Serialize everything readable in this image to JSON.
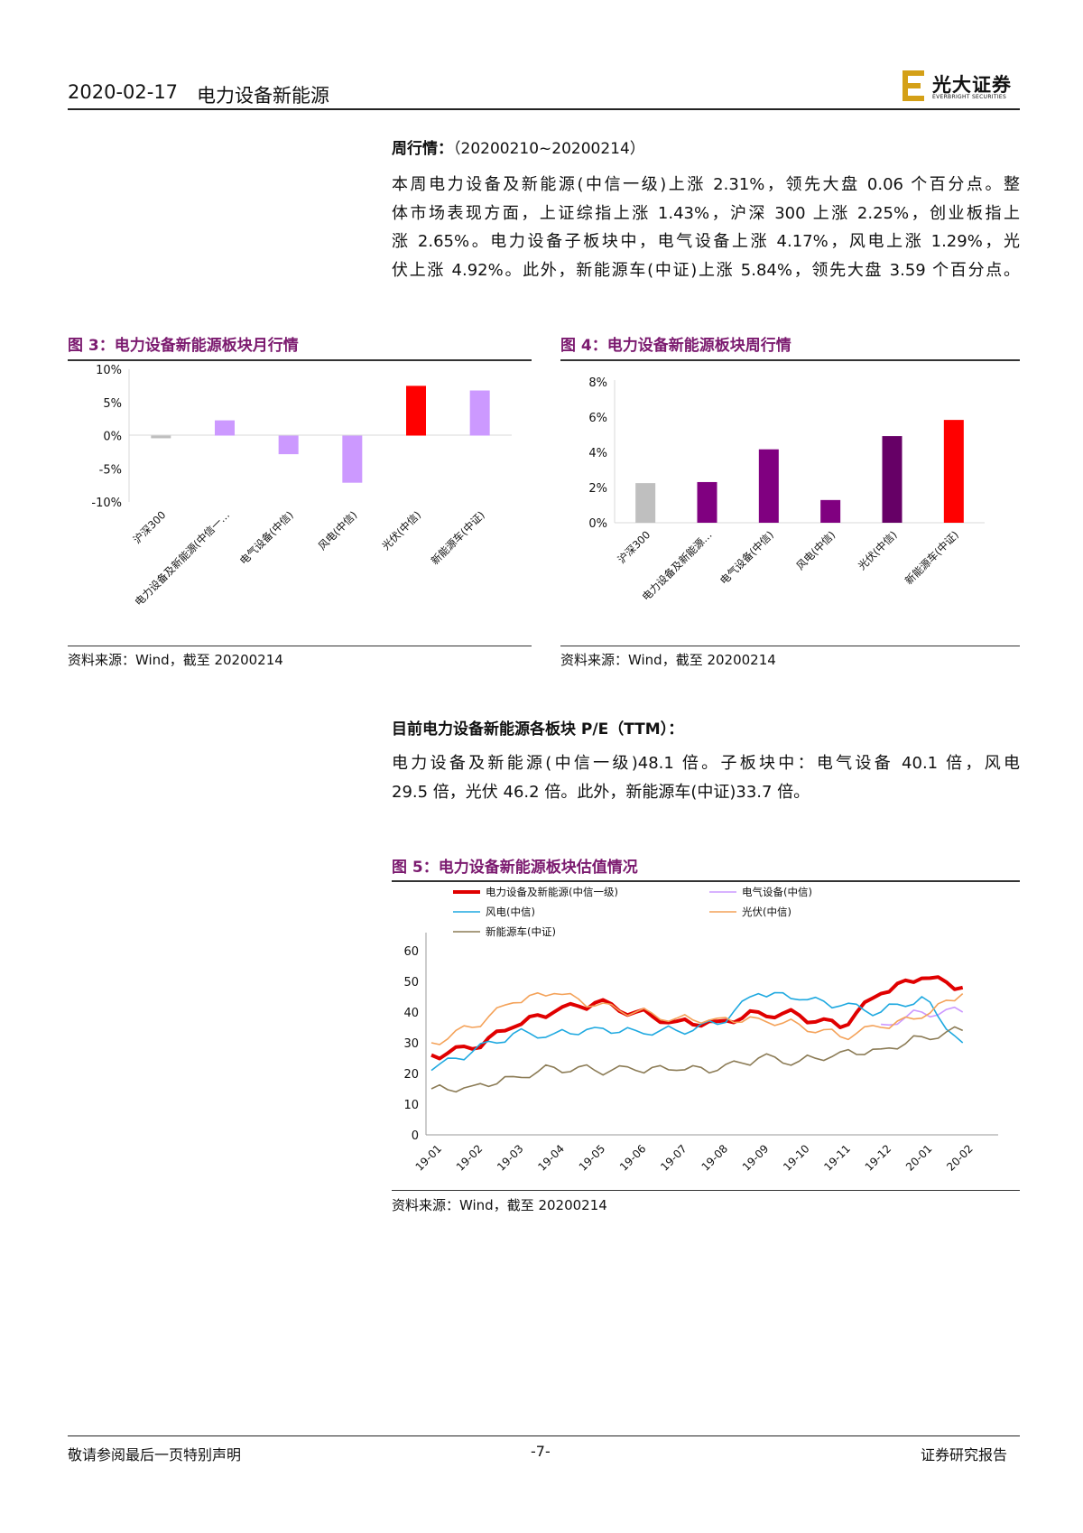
{
  "header": {
    "date": "2020-02-17",
    "topic": "电力设备新能源",
    "brand_name": "光大证券",
    "brand_sub": "EVERBRIGHT SECURITIES"
  },
  "weekly": {
    "title": "周行情：",
    "period": "（20200210~20200214）",
    "lines": [
      "本周电力设备及新能源(中信一级)上涨 2.31%，领先大盘 0.06 个百分点。整",
      "体市场表现方面，上证综指上涨 1.43%，沪深 300 上涨 2.25%，创业板指上",
      "涨 2.65%。电力设备子板块中，电气设备上涨 4.17%，风电上涨 1.29%，光",
      "伏上涨 4.92%。此外，新能源车(中证)上涨 5.84%，领先大盘 3.59 个百分点。"
    ]
  },
  "pe": {
    "title": "目前电力设备新能源各板块 P/E（TTM）：",
    "lines": [
      "电力设备及新能源(中信一级)48.1 倍。子板块中：电气设备 40.1 倍，风电",
      "29.5 倍，光伏 46.2 倍。此外，新能源车(中证)33.7 倍。"
    ]
  },
  "fig3": {
    "title": "图 3：电力设备新能源板块月行情",
    "source": "资料来源：Wind，截至 20200214"
  },
  "fig4": {
    "title": "图 4：电力设备新能源板块周行情",
    "source": "资料来源：Wind，截至 20200214"
  },
  "fig5": {
    "title": "图 5：电力设备新能源板块估值情况",
    "source": "资料来源：Wind，截至 20200214"
  },
  "chart_data": [
    {
      "id": "fig3",
      "type": "bar",
      "title": "电力设备新能源板块月行情",
      "categories": [
        "沪深300",
        "电力设备及新能源(中信一…",
        "电气设备(中信)",
        "风电(中信)",
        "光伏(中信)",
        "新能源车(中证)"
      ],
      "values": [
        -0.4,
        2.3,
        -2.8,
        -7.1,
        7.5,
        6.8
      ],
      "colors": [
        "#bfbfbf",
        "#cc99ff",
        "#cc99ff",
        "#cc99ff",
        "#ff0000",
        "#cc99ff"
      ],
      "yticks": [
        "10%",
        "5%",
        "0%",
        "-5%",
        "-10%"
      ],
      "ylim": [
        -10,
        10
      ]
    },
    {
      "id": "fig4",
      "type": "bar",
      "title": "电力设备新能源板块周行情",
      "categories": [
        "沪深300",
        "电力设备及新能源…",
        "电气设备(中信)",
        "风电(中信)",
        "光伏(中信)",
        "新能源车(中证)"
      ],
      "values": [
        2.25,
        2.31,
        4.17,
        1.29,
        4.92,
        5.84
      ],
      "colors": [
        "#bfbfbf",
        "#800080",
        "#800080",
        "#800080",
        "#660066",
        "#ff0000"
      ],
      "yticks": [
        "8%",
        "6%",
        "4%",
        "2%",
        "0%"
      ],
      "ylim": [
        0,
        8
      ]
    },
    {
      "id": "fig5",
      "type": "line",
      "title": "电力设备新能源板块估值情况",
      "x": [
        "19-01",
        "19-02",
        "19-03",
        "19-04",
        "19-05",
        "19-06",
        "19-07",
        "19-08",
        "19-09",
        "19-10",
        "19-11",
        "19-12",
        "20-01",
        "20-02"
      ],
      "yticks": [
        "60",
        "50",
        "40",
        "30",
        "20",
        "10",
        "0"
      ],
      "ylim": [
        0,
        60
      ],
      "series": [
        {
          "name": "电力设备及新能源(中信一级)",
          "color": "#e00000",
          "width": 4,
          "values": [
            26,
            28,
            35,
            40,
            43,
            40,
            37,
            37,
            40,
            39,
            35,
            46,
            51,
            48
          ]
        },
        {
          "name": "电气设备(中信)",
          "color": "#cc99ff",
          "width": 1.6,
          "values": [
            null,
            null,
            null,
            null,
            null,
            null,
            null,
            null,
            null,
            null,
            null,
            36,
            40,
            40
          ]
        },
        {
          "name": "风电(中信)",
          "color": "#1fa9e0",
          "width": 1.6,
          "values": [
            21,
            27,
            33,
            33,
            35,
            34,
            34,
            36,
            46,
            44,
            42,
            40,
            45,
            30
          ]
        },
        {
          "name": "光伏(中信)",
          "color": "#f4a259",
          "width": 1.6,
          "values": [
            30,
            35,
            43,
            46,
            42,
            40,
            38,
            38,
            38,
            36,
            32,
            35,
            38,
            46
          ]
        },
        {
          "name": "新能源车(中证)",
          "color": "#8b7b55",
          "width": 1.6,
          "values": [
            15,
            16,
            19,
            22,
            21,
            21,
            21,
            21,
            25,
            24,
            27,
            28,
            32,
            34
          ]
        }
      ]
    }
  ]
}
